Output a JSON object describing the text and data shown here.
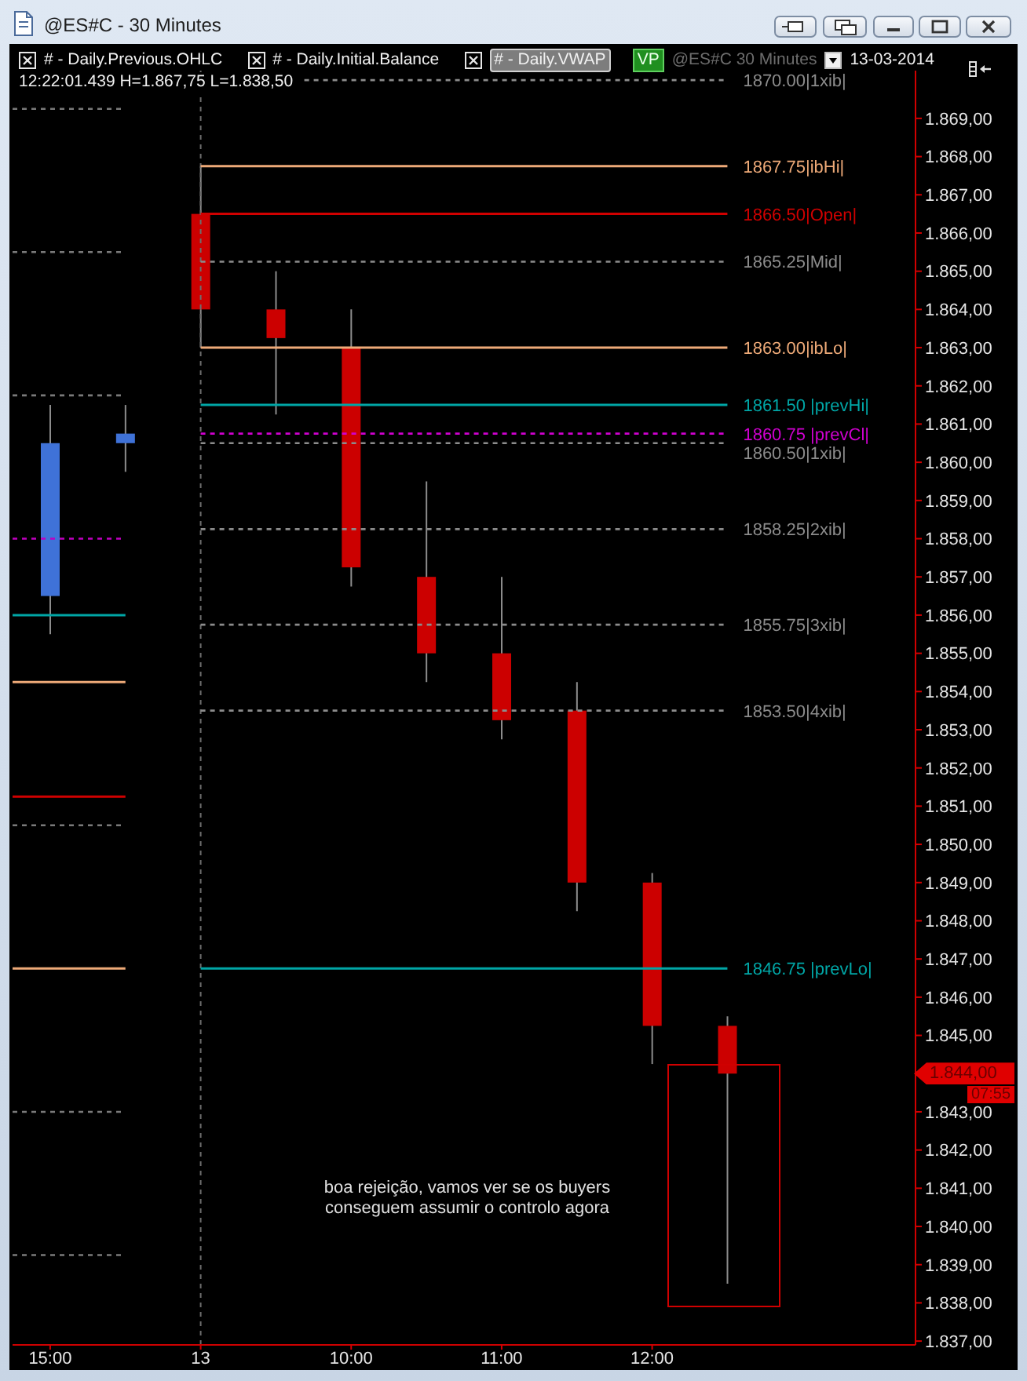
{
  "chart_data": {
    "type": "candlestick",
    "title": "@ES#C - 30 Minutes",
    "categories": [
      "15:00",
      null,
      "13",
      null,
      "10:00",
      null,
      "11:00",
      null,
      "12:00",
      null,
      null,
      null
    ],
    "ohlc": [
      [
        1856.5,
        1861.5,
        1855.5,
        1860.5
      ],
      [
        1860.5,
        1861.5,
        1859.75,
        1860.75
      ],
      [
        1866.5,
        1867.75,
        1863.0,
        1864.0
      ],
      [
        1864.0,
        1865.0,
        1861.25,
        1863.25
      ],
      [
        1863.0,
        1864.0,
        1856.75,
        1857.25
      ],
      [
        1857.0,
        1859.5,
        1854.25,
        1855.0
      ],
      [
        1855.0,
        1857.0,
        1852.75,
        1853.25
      ],
      [
        1853.5,
        1854.25,
        1848.25,
        1849.0
      ],
      [
        1849.0,
        1849.25,
        1844.25,
        1845.25
      ],
      [
        1845.25,
        1845.5,
        1838.5,
        1844.0
      ],
      null,
      null
    ],
    "colors": [
      "#3f72d8",
      "#3f72d8",
      "#cc0000",
      "#cc0000",
      "#cc0000",
      "#cc0000",
      "#cc0000",
      "#cc0000",
      "#cc0000",
      "#cc0000",
      null,
      null
    ],
    "ylim": [
      1836.9,
      1870.25
    ],
    "yticks": [
      {
        "value": 1837,
        "label": "1.837,00"
      },
      {
        "value": 1838,
        "label": "1.838,00"
      },
      {
        "value": 1839,
        "label": "1.839,00"
      },
      {
        "value": 1840,
        "label": "1.840,00"
      },
      {
        "value": 1841,
        "label": "1.841,00"
      },
      {
        "value": 1842,
        "label": "1.842,00"
      },
      {
        "value": 1843,
        "label": "1.843,00"
      },
      {
        "value": 1845,
        "label": "1.845,00"
      },
      {
        "value": 1846,
        "label": "1.846,00"
      },
      {
        "value": 1847,
        "label": "1.847,00"
      },
      {
        "value": 1848,
        "label": "1.848,00"
      },
      {
        "value": 1849,
        "label": "1.849,00"
      },
      {
        "value": 1850,
        "label": "1.850,00"
      },
      {
        "value": 1851,
        "label": "1.851,00"
      },
      {
        "value": 1852,
        "label": "1.852,00"
      },
      {
        "value": 1853,
        "label": "1.853,00"
      },
      {
        "value": 1854,
        "label": "1.854,00"
      },
      {
        "value": 1855,
        "label": "1.855,00"
      },
      {
        "value": 1856,
        "label": "1.856,00"
      },
      {
        "value": 1857,
        "label": "1.857,00"
      },
      {
        "value": 1858,
        "label": "1.858,00"
      },
      {
        "value": 1859,
        "label": "1.859,00"
      },
      {
        "value": 1860,
        "label": "1.860,00"
      },
      {
        "value": 1861,
        "label": "1.861,00"
      },
      {
        "value": 1862,
        "label": "1.862,00"
      },
      {
        "value": 1863,
        "label": "1.863,00"
      },
      {
        "value": 1864,
        "label": "1.864,00"
      },
      {
        "value": 1865,
        "label": "1.865,00"
      },
      {
        "value": 1866,
        "label": "1.866,00"
      },
      {
        "value": 1867,
        "label": "1.867,00"
      },
      {
        "value": 1868,
        "label": "1.868,00"
      },
      {
        "value": 1869,
        "label": "1.869,00"
      }
    ],
    "ref_lines": [
      {
        "axis": "x",
        "value": "13",
        "color": "#6e6e6e",
        "line_style": "dashed"
      },
      {
        "axis": "y",
        "value": 1870.0,
        "label": "1870.00|1xib|",
        "color": "#8c8c8c",
        "line_style": "dashed"
      },
      {
        "axis": "y",
        "value": 1867.75,
        "label": "1867.75|ibHi|",
        "color": "#eeaa78",
        "line_style": "solid"
      },
      {
        "axis": "y",
        "value": 1866.5,
        "label": "1866.50|Open|",
        "color": "#d00000",
        "line_style": "solid"
      },
      {
        "axis": "y",
        "value": 1865.25,
        "label": "1865.25|Mid|",
        "color": "#8c8c8c",
        "line_style": "dashed"
      },
      {
        "axis": "y",
        "value": 1863.0,
        "label": "1863.00|ibLo|",
        "color": "#eeaa78",
        "line_style": "solid"
      },
      {
        "axis": "y",
        "value": 1861.5,
        "label": "1861.50 |prevHi|",
        "color": "#00a6a6",
        "line_style": "solid"
      },
      {
        "axis": "y",
        "value": 1860.75,
        "label": "1860.75 |prevCl|",
        "color": "#d000d0",
        "line_style": "dashed"
      },
      {
        "axis": "y",
        "value": 1860.5,
        "label": "1860.50|1xib|",
        "color": "#8c8c8c",
        "line_style": "dashed"
      },
      {
        "axis": "y",
        "value": 1858.25,
        "label": "1858.25|2xib|",
        "color": "#8c8c8c",
        "line_style": "dashed"
      },
      {
        "axis": "y",
        "value": 1855.75,
        "label": "1855.75|3xib|",
        "color": "#8c8c8c",
        "line_style": "dashed"
      },
      {
        "axis": "y",
        "value": 1853.5,
        "label": "1853.50|4xib|",
        "color": "#8c8c8c",
        "line_style": "dashed"
      },
      {
        "axis": "y",
        "value": 1846.75,
        "label": "1846.75 |prevLo|",
        "color": "#00a6a6",
        "line_style": "solid"
      },
      {
        "axis": "y",
        "value": 1869.25,
        "color": "#7a7a7a",
        "line_style": "dashed"
      },
      {
        "axis": "y",
        "value": 1865.5,
        "color": "#7a7a7a",
        "line_style": "dashed"
      },
      {
        "axis": "y",
        "value": 1861.75,
        "color": "#7a7a7a",
        "line_style": "dashed"
      },
      {
        "axis": "y",
        "value": 1858.0,
        "color": "#c000c0",
        "line_style": "dashed"
      },
      {
        "axis": "y",
        "value": 1856.0,
        "color": "#00a6a6",
        "line_style": "solid"
      },
      {
        "axis": "y",
        "value": 1854.25,
        "color": "#eeaa78",
        "line_style": "solid"
      },
      {
        "axis": "y",
        "value": 1851.25,
        "color": "#d00000",
        "line_style": "solid"
      },
      {
        "axis": "y",
        "value": 1850.5,
        "color": "#7a7a7a",
        "line_style": "dashed"
      },
      {
        "axis": "y",
        "value": 1846.75,
        "color": "#eeaa78",
        "line_style": "solid"
      },
      {
        "axis": "y",
        "value": 1843.0,
        "color": "#7a7a7a",
        "line_style": "dashed"
      },
      {
        "axis": "y",
        "value": 1839.25,
        "color": "#7a7a7a",
        "line_style": "dashed"
      }
    ],
    "annotations": [
      "# - Daily.Previous.OHLC",
      "# - Daily.Initial.Balance",
      "# - Daily.VWAP",
      "VP",
      "@ES#C 30 Minutes",
      "13-03-2014",
      "12:22:01.439 H=1.867,75 L=1.838,50",
      "boa rejeição, vamos ver se os buyers conseguem assumir o controlo agora",
      "1.844,00",
      "07:55"
    ]
  }
}
